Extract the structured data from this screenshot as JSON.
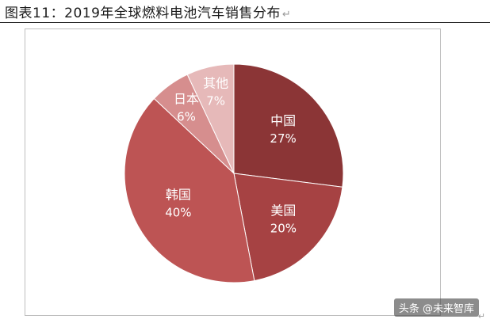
{
  "figure": {
    "caption": "图表11：2019年全球燃料电池汽车销售分布",
    "return_mark": "↵",
    "watermark": "头条 @未来智库"
  },
  "chart_data": {
    "type": "pie",
    "title": "",
    "categories": [
      "中国",
      "美国",
      "韩国",
      "日本",
      "其他"
    ],
    "values": [
      27,
      20,
      40,
      6,
      7
    ],
    "value_labels": [
      "27%",
      "20%",
      "40%",
      "6%",
      "7%"
    ],
    "colors": [
      "#8b3536",
      "#a64243",
      "#bd5454",
      "#d68e8e",
      "#e6b9b9"
    ],
    "start_angle_deg": 0,
    "direction": "clockwise",
    "legend": "none"
  }
}
